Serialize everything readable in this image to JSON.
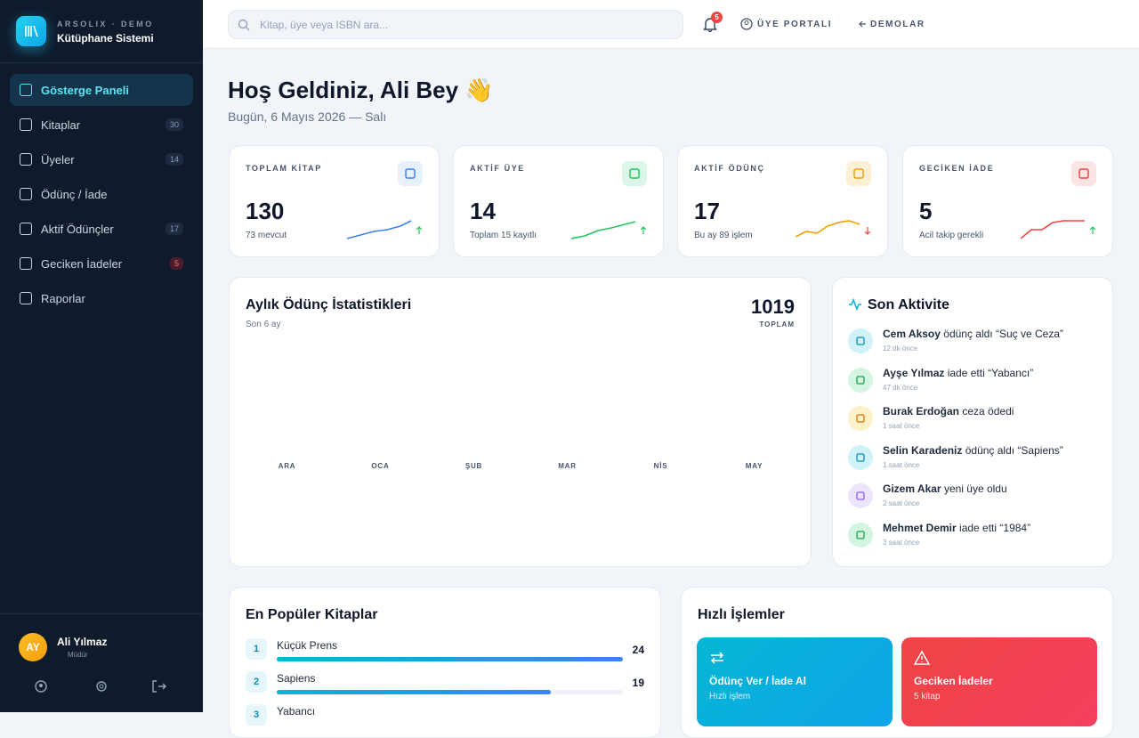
{
  "sidebar": {
    "brand_small": "ARSOLIX · DEMO",
    "brand": "Kütüphane Sistemi",
    "nav": [
      {
        "label": "Gösterge Paneli"
      },
      {
        "label": "Kitaplar",
        "badge": 30
      },
      {
        "label": "Üyeler",
        "badge": 14
      },
      {
        "label": "Ödünç / İade"
      },
      {
        "label": "Aktif Ödünçler",
        "badge": 17
      },
      {
        "label": "Geciken İadeler",
        "badge": 5
      },
      {
        "label": "Raporlar"
      }
    ],
    "user": {
      "initials": "AY",
      "name": "Ali Yılmaz",
      "role": "Müdür"
    }
  },
  "topbar": {
    "search_placeholder": "Kitap, üye veya ISBN ara...",
    "notification_count": 5,
    "links": [
      "ÜYE PORTALI",
      "DEMOLAR"
    ]
  },
  "header": {
    "title": "Hoş Geldiniz, Ali Bey 👋",
    "date": "Bugün, 6 Mayıs 2026 — Salı"
  },
  "stats": [
    {
      "label": "TOPLAM KİTAP",
      "value": 130,
      "note": "73 mevcut"
    },
    {
      "label": "AKTİF ÜYE",
      "value": 14,
      "note": "Toplam 15 kayıtlı"
    },
    {
      "label": "AKTİF ÖDÜNÇ",
      "value": 17,
      "note": "Bu ay 89 işlem"
    },
    {
      "label": "GECİKEN İADE",
      "value": 5,
      "note": "Acil takip gerekli"
    }
  ],
  "monthly": {
    "title": "Aylık Ödünç İstatistikleri",
    "subtitle": "Son 6 ay",
    "total": 1019,
    "total_label": "TOPLAM",
    "months": [
      "ARA",
      "OCA",
      "ŞUB",
      "MAR",
      "NİS",
      "MAY"
    ]
  },
  "activity": {
    "title": "Son Aktivite",
    "items": [
      {
        "name": "Cem Aksoy",
        "action": "ödünç aldı “Suç ve Ceza”",
        "time": "12 dk önce"
      },
      {
        "name": "Ayşe Yılmaz",
        "action": "iade etti “Yabancı”",
        "time": "47 dk önce"
      },
      {
        "name": "Burak Erdoğan",
        "action": "ceza ödedi",
        "time": "1 saat önce"
      },
      {
        "name": "Selin Karadeniz",
        "action": "ödünç aldı “Sapiens”",
        "time": "1 saat önce"
      },
      {
        "name": "Gizem Akar",
        "action": "yeni üye oldu",
        "time": "2 saat önce"
      },
      {
        "name": "Mehmet Demir",
        "action": "iade etti “1984”",
        "time": "3 saat önce"
      }
    ]
  },
  "popular": {
    "title": "En Popüler Kitaplar",
    "books": [
      {
        "rank": 1,
        "title": "Küçük Prens",
        "count": 24
      },
      {
        "rank": 2,
        "title": "Sapiens",
        "count": 19
      },
      {
        "rank": 3,
        "title": "Yabancı"
      }
    ]
  },
  "quick": {
    "title": "Hızlı İşlemler",
    "actions": [
      {
        "label": "Ödünç Ver / İade Al",
        "sub": "Hızlı işlem"
      },
      {
        "label": "Geciken İadeler",
        "sub": "5 kitap"
      }
    ]
  }
}
